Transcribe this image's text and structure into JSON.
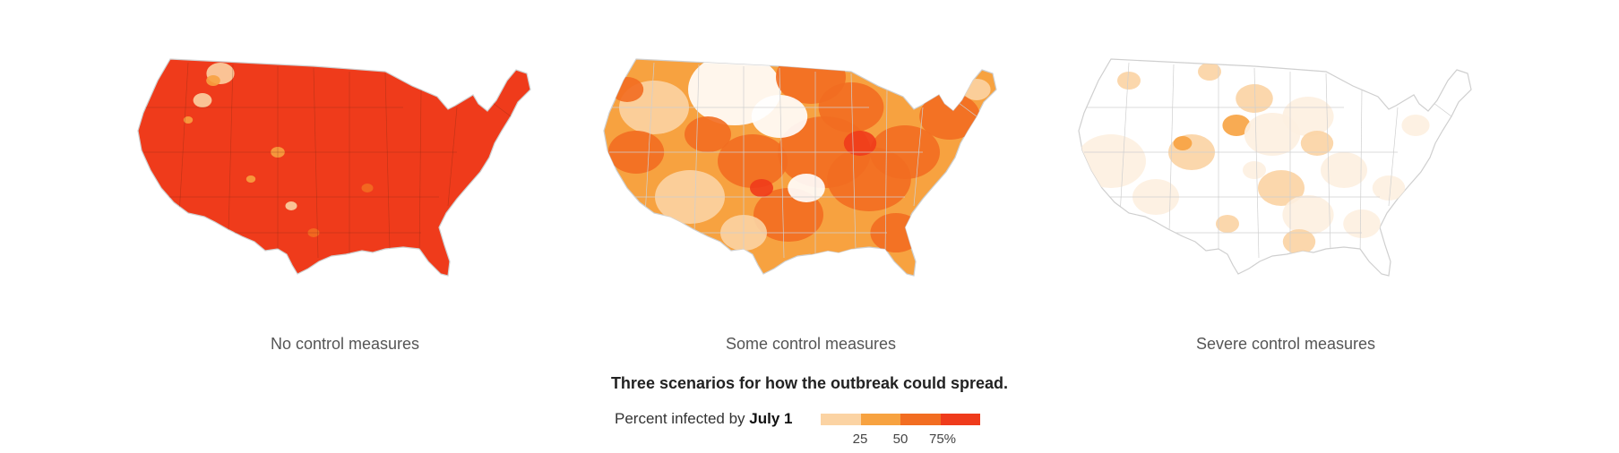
{
  "colors": {
    "bin1": "#fbd3a3",
    "bin2": "#f7a240",
    "bin3": "#f26d21",
    "bin4": "#ef3b1b",
    "outline": "#cfcfcf",
    "background": "#ffffff"
  },
  "maps": [
    {
      "caption": "No control measures",
      "level": "high"
    },
    {
      "caption": "Some control measures",
      "level": "medium"
    },
    {
      "caption": "Severe control measures",
      "level": "low"
    }
  ],
  "headline": "Three scenarios for how the outbreak could spread.",
  "legend": {
    "label_prefix": "Percent infected by",
    "label_date": "July 1",
    "ticks": [
      "25",
      "50",
      "75%"
    ]
  }
}
